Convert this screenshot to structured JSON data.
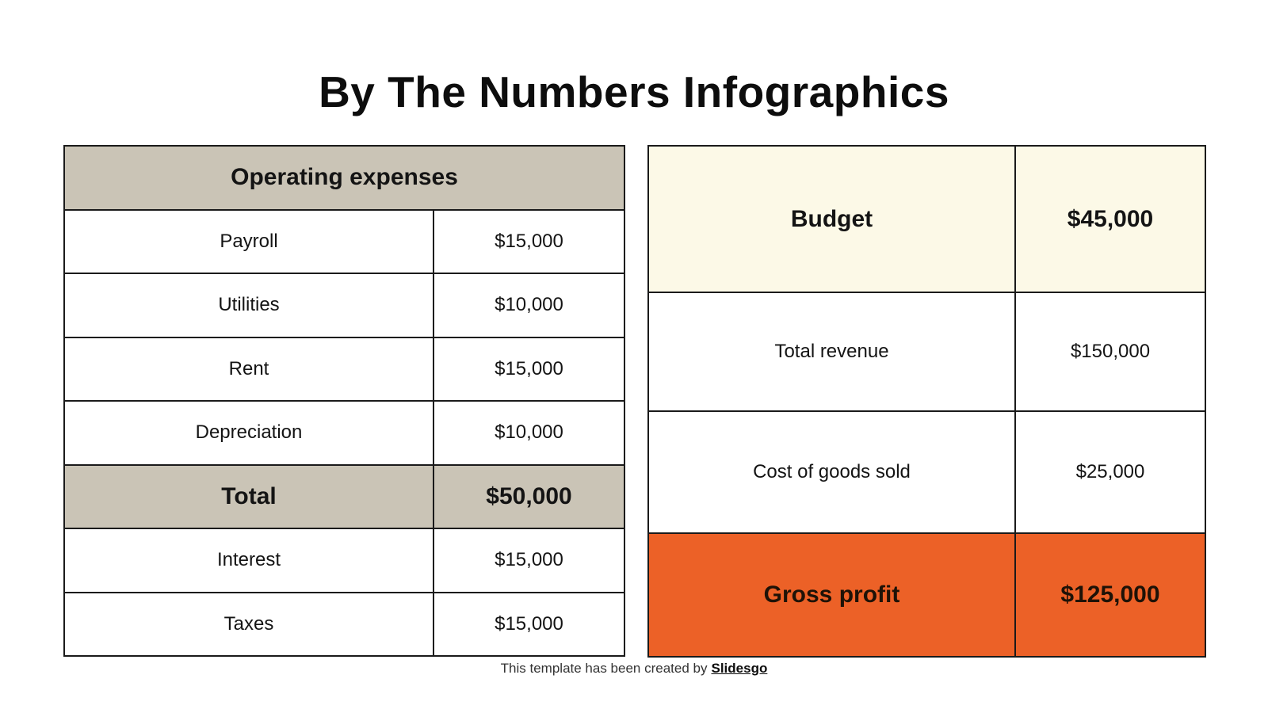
{
  "title": "By The Numbers Infographics",
  "colors": {
    "tan": "#cac4b6",
    "cream": "#fcf9e7",
    "orange": "#ec6127",
    "border": "#1a1a1a",
    "text": "#141414"
  },
  "left_table": {
    "header": "Operating expenses",
    "rows": [
      {
        "label": "Payroll",
        "value": "$15,000",
        "emphasis": false
      },
      {
        "label": "Utilities",
        "value": "$10,000",
        "emphasis": false
      },
      {
        "label": "Rent",
        "value": "$15,000",
        "emphasis": false
      },
      {
        "label": "Depreciation",
        "value": "$10,000",
        "emphasis": false
      },
      {
        "label": "Total",
        "value": "$50,000",
        "emphasis": true
      },
      {
        "label": "Interest",
        "value": "$15,000",
        "emphasis": false
      },
      {
        "label": "Taxes",
        "value": "$15,000",
        "emphasis": false
      }
    ]
  },
  "right_table": {
    "rows": [
      {
        "label": "Budget",
        "value": "$45,000",
        "style": "cream",
        "emphasis": true
      },
      {
        "label": "Total revenue",
        "value": "$150,000",
        "style": "plain",
        "emphasis": false
      },
      {
        "label": "Cost of goods sold",
        "value": "$25,000",
        "style": "plain",
        "emphasis": false
      },
      {
        "label": "Gross profit",
        "value": "$125,000",
        "style": "orange",
        "emphasis": true
      }
    ]
  },
  "footer": {
    "text": "This template has been created by",
    "brand": "Slidesgo"
  }
}
